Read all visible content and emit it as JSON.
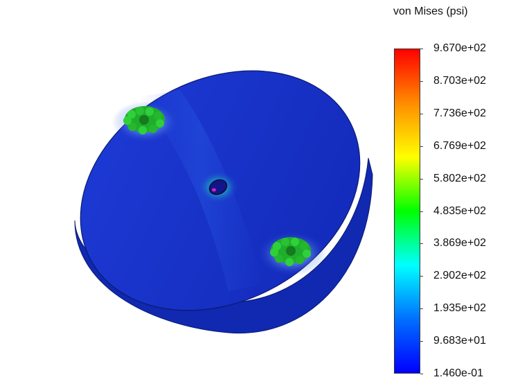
{
  "legend": {
    "title": "von Mises (psi)",
    "ticks": [
      "9.670e+02",
      "8.703e+02",
      "7.736e+02",
      "6.769e+02",
      "5.802e+02",
      "4.835e+02",
      "3.869e+02",
      "2.902e+02",
      "1.935e+02",
      "9.683e+01",
      "1.460e-01"
    ],
    "colors": [
      "#ff0000",
      "#ff8c00",
      "#ffff00",
      "#00ff00",
      "#00ffff",
      "#0070ff",
      "#0000ff"
    ]
  },
  "model": {
    "body_color": "#1a33cc",
    "side_color": "#1029b0"
  }
}
